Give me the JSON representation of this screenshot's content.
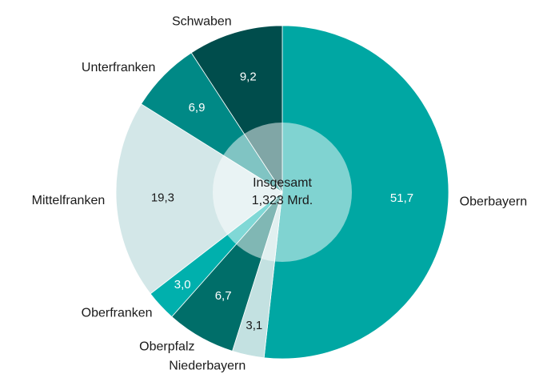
{
  "chart_data": {
    "type": "pie",
    "categories": [
      "Oberbayern",
      "Niederbayern",
      "Oberpfalz",
      "Oberfranken",
      "Mittelfranken",
      "Unterfranken",
      "Schwaben"
    ],
    "values": [
      51.7,
      3.1,
      6.7,
      3.0,
      19.3,
      6.9,
      9.2
    ],
    "value_labels": [
      "51,7",
      "3,1",
      "6,7",
      "3,0",
      "19,3",
      "6,9",
      "9,2"
    ],
    "colors": [
      "#00a7a3",
      "#c3e1e1",
      "#006e69",
      "#00b0ad",
      "#d3e7e8",
      "#008986",
      "#004d4c"
    ],
    "annotations": [
      "Insgesamt",
      "1,323 Mrd."
    ]
  }
}
